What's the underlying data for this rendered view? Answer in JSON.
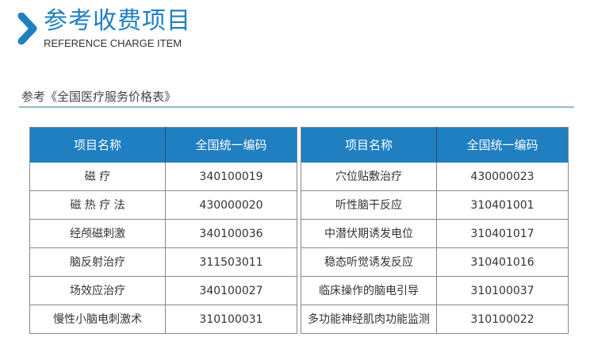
{
  "header": {
    "title": "参考收费项目",
    "subtitle": "REFERENCE CHARGE ITEM",
    "accent": "#1f7fc1"
  },
  "reference": "参考《全国医疗服务价格表》",
  "columns": [
    "项目名称",
    "全国统一编码"
  ],
  "left_rows": [
    [
      "磁 疗",
      "340100019"
    ],
    [
      "磁 热 疗 法",
      "430000020"
    ],
    [
      "经颅磁刺激",
      "340100036"
    ],
    [
      "脑反射治疗",
      "311503011"
    ],
    [
      "场效应治疗",
      "340100027"
    ],
    [
      "慢性小脑电刺激术",
      "310100031"
    ]
  ],
  "right_rows": [
    [
      "穴位贴敷治疗",
      "430000023"
    ],
    [
      "听性脑干反应",
      "310401001"
    ],
    [
      "中潜伏期诱发电位",
      "310401017"
    ],
    [
      "稳态听觉诱发反应",
      "310401016"
    ],
    [
      "临床操作的脑电引导",
      "310100037"
    ],
    [
      "多功能神经肌肉功能监测",
      "310100022"
    ]
  ]
}
